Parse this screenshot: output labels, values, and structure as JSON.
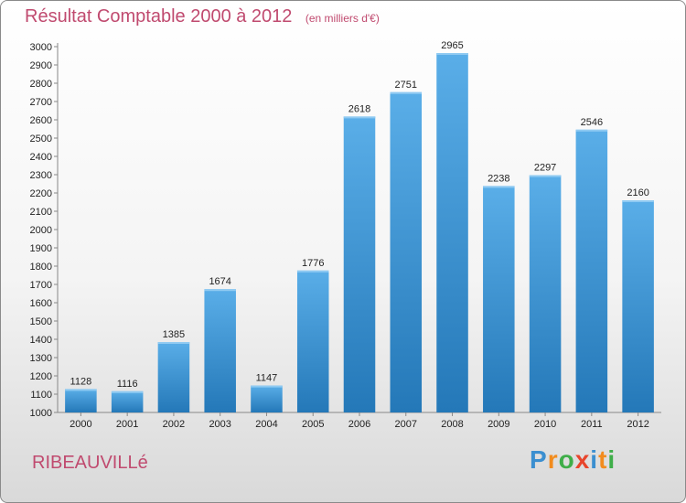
{
  "chart_data": {
    "type": "bar",
    "title": "Résultat Comptable 2000 à 2012",
    "subtitle": "(en milliers d'€)",
    "categories": [
      "2000",
      "2001",
      "2002",
      "2003",
      "2004",
      "2005",
      "2006",
      "2007",
      "2008",
      "2009",
      "2010",
      "2011",
      "2012"
    ],
    "values": [
      1128,
      1116,
      1385,
      1674,
      1147,
      1776,
      2618,
      2751,
      2965,
      2238,
      2297,
      2546,
      2160
    ],
    "ylim": [
      1000,
      3000
    ],
    "ytick_step": 100,
    "grid": false,
    "legend": "none"
  },
  "location_label": "RIBEAUVILLé",
  "logo": {
    "letters": [
      "P",
      "r",
      "o",
      "x",
      "i",
      "t",
      "i"
    ],
    "colors": [
      "#3b8fd0",
      "#f28c1e",
      "#3fae49",
      "#e8452c",
      "#3b8fd0",
      "#f28c1e",
      "#3fae49"
    ]
  },
  "colors": {
    "bar_top": "#5aaee8",
    "bar_bottom": "#2478b8",
    "title": "#c04a6f",
    "axis": "#888888"
  }
}
